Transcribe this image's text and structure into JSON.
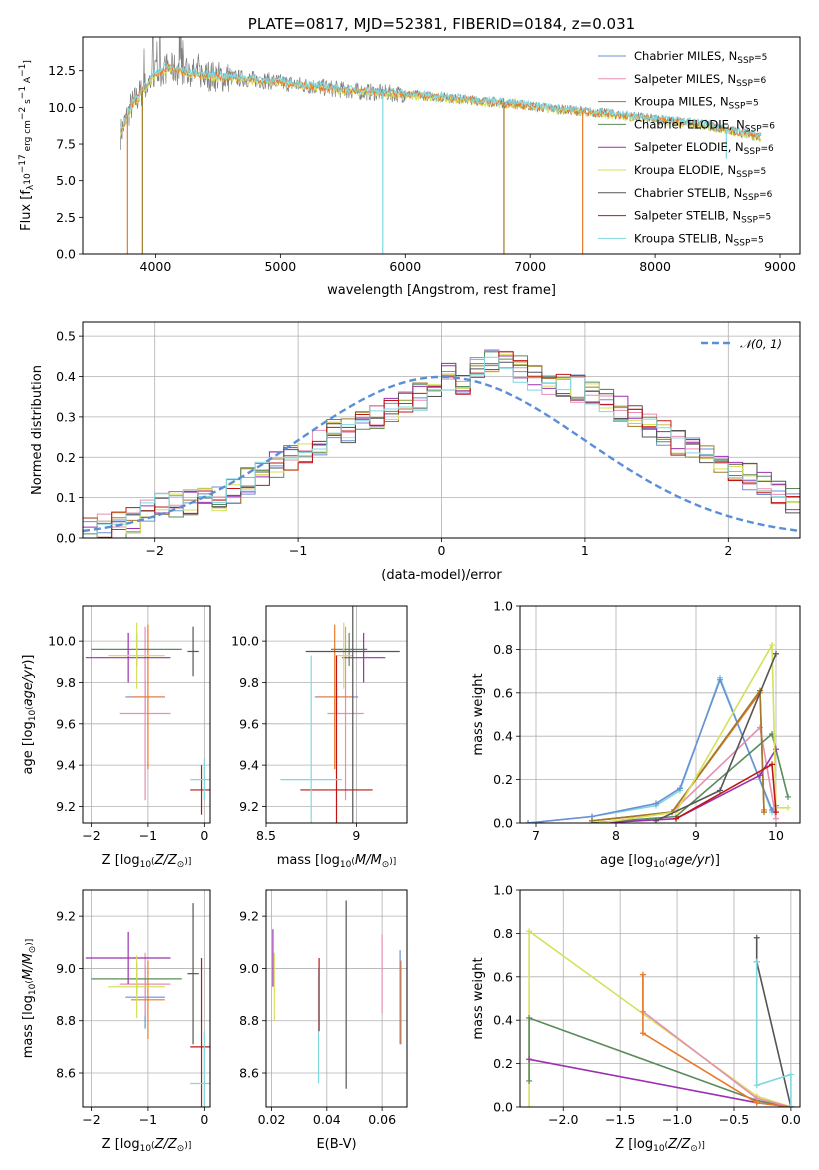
{
  "colors": {
    "Chabrier MILES": "#6a8fd6",
    "Salpeter MILES": "#e58fb4",
    "Kroupa MILES": "#a07a28",
    "Chabrier ELODIE": "#5b8a5b",
    "Salpeter ELODIE": "#9b30b0",
    "Kroupa ELODIE": "#d6e05a",
    "Chabrier STELIB": "#555555",
    "Salpeter STELIB": "#c01515",
    "Kroupa STELIB": "#7fd8e0",
    "data": "#808080",
    "orange": "#e87a2a",
    "normal": "#5b8ed8"
  },
  "chart_data": [
    {
      "id": "spectrum",
      "type": "line",
      "title": "PLATE=0817, MJD=52381, FIBERID=0184, z=0.031",
      "xlabel": "wavelength [Angstrom, rest frame]",
      "ylabel": "Flux [fλ10⁻¹⁷ erg cm⁻² s⁻¹ A⁻¹]",
      "xlim": [
        3420,
        9160
      ],
      "ylim": [
        0,
        14.8
      ],
      "xticks": [
        4000,
        5000,
        6000,
        7000,
        8000,
        9000
      ],
      "yticks": [
        0.0,
        2.5,
        5.0,
        7.5,
        10.0,
        12.5
      ],
      "ytick_labels": [
        "0.0",
        "2.5",
        "5.0",
        "7.5",
        "10.0",
        "12.5"
      ],
      "continuum_x": [
        3720,
        3800,
        3900,
        4000,
        4100,
        4300,
        4500,
        4800,
        5200,
        5600,
        6000,
        6400,
        6800,
        7200,
        7600,
        8000,
        8400,
        8850
      ],
      "continuum_y": [
        8.2,
        10.0,
        11.2,
        12.3,
        12.7,
        12.3,
        12.1,
        11.9,
        11.5,
        11.1,
        10.9,
        10.6,
        10.3,
        9.9,
        9.6,
        9.2,
        8.8,
        8.0
      ],
      "dips": [
        {
          "x": 3775,
          "color": "orange",
          "y": 0
        },
        {
          "x": 3895,
          "color": "Kroupa MILES",
          "y": 0
        },
        {
          "x": 5820,
          "color": "Kroupa STELIB",
          "y": 0
        },
        {
          "x": 6790,
          "color": "Kroupa MILES",
          "y": 0
        },
        {
          "x": 7420,
          "color": "orange",
          "y": 0
        },
        {
          "x": 8570,
          "color": "Kroupa STELIB",
          "y": 6.5
        }
      ],
      "legend": {
        "placement": "top-right",
        "entries": [
          {
            "name": "Chabrier MILES",
            "sub": "SSP",
            "n": "=5"
          },
          {
            "name": "Salpeter MILES",
            "sub": "SSP",
            "n": "=6"
          },
          {
            "name": "Kroupa MILES",
            "sub": "SSP",
            "n": "=5"
          },
          {
            "name": "Chabrier ELODIE",
            "sub": "SSP",
            "n": "=6"
          },
          {
            "name": "Salpeter ELODIE",
            "sub": "SSP",
            "n": "=6"
          },
          {
            "name": "Kroupa ELODIE",
            "sub": "SSP",
            "n": "=5"
          },
          {
            "name": "Chabrier STELIB",
            "sub": "SSP",
            "n": "=6"
          },
          {
            "name": "Salpeter STELIB",
            "sub": "SSP",
            "n": "=5"
          },
          {
            "name": "Kroupa STELIB",
            "sub": "SSP",
            "n": "=5"
          }
        ]
      }
    },
    {
      "id": "residuals",
      "type": "bar",
      "xlabel": "(data-model)/error",
      "ylabel": "Normed distribution",
      "xlim": [
        -2.5,
        2.5
      ],
      "ylim": [
        0,
        0.535
      ],
      "xticks": [
        -2,
        -1,
        0,
        1,
        2
      ],
      "yticks": [
        0.0,
        0.1,
        0.2,
        0.3,
        0.4,
        0.5
      ],
      "ytick_labels": [
        "0.0",
        "0.1",
        "0.2",
        "0.3",
        "0.4",
        "0.5"
      ],
      "bin_width": 0.1,
      "hist_base": [
        0.02,
        0.025,
        0.03,
        0.045,
        0.06,
        0.08,
        0.08,
        0.085,
        0.09,
        0.1,
        0.12,
        0.14,
        0.16,
        0.18,
        0.2,
        0.22,
        0.24,
        0.26,
        0.27,
        0.28,
        0.3,
        0.32,
        0.33,
        0.35,
        0.37,
        0.4,
        0.39,
        0.42,
        0.44,
        0.43,
        0.42,
        0.4,
        0.39,
        0.38,
        0.37,
        0.36,
        0.34,
        0.32,
        0.3,
        0.28,
        0.26,
        0.24,
        0.22,
        0.2,
        0.18,
        0.16,
        0.15,
        0.13,
        0.11,
        0.09,
        0.08,
        0.07,
        0.065,
        0.06,
        0.05,
        0.04,
        0.035,
        0.03,
        0.028,
        0.025
      ],
      "normal_label": "𝒩(0, 1)",
      "legend": {
        "placement": "top-right"
      }
    },
    {
      "id": "age-vs-Z",
      "type": "scatter",
      "xlabel": "Z [log10(Z/Z⊙)]",
      "ylabel": "age  [log10(age/yr)]",
      "xlim": [
        -2.15,
        0.1
      ],
      "ylim": [
        9.12,
        10.17
      ],
      "xticks": [
        -2,
        -1,
        0
      ],
      "yticks": [
        9.2,
        9.4,
        9.6,
        9.8,
        10.0
      ],
      "ytick_labels": [
        "9.2",
        "9.4",
        "9.6",
        "9.8",
        "10.0"
      ],
      "points": [
        {
          "c": "Chabrier MILES",
          "x": -1.05,
          "y": 9.73,
          "xe": 0.35,
          "ye": 0.08
        },
        {
          "c": "Salpeter MILES",
          "x": -1.05,
          "y": 9.65,
          "xe": 0.45,
          "ye": 0.42
        },
        {
          "c": "orange",
          "x": -1.0,
          "y": 9.73,
          "xe": 0.3,
          "ye": 0.35
        },
        {
          "c": "Chabrier ELODIE",
          "x": -1.2,
          "y": 9.96,
          "xe": 0.8,
          "ye": 0.08
        },
        {
          "c": "Salpeter ELODIE",
          "x": -1.35,
          "y": 9.92,
          "xe": 0.75,
          "ye": 0.12
        },
        {
          "c": "Kroupa ELODIE",
          "x": -1.2,
          "y": 9.93,
          "xe": 0.5,
          "ye": 0.16
        },
        {
          "c": "Chabrier STELIB",
          "x": -0.2,
          "y": 9.95,
          "xe": 0.1,
          "ye": 0.12
        },
        {
          "c": "Salpeter STELIB",
          "x": -0.05,
          "y": 9.28,
          "xe": 0.2,
          "ye": 0.12
        },
        {
          "c": "Kroupa STELIB",
          "x": 0.0,
          "y": 9.33,
          "xe": 0.25,
          "ye": 0.1
        }
      ]
    },
    {
      "id": "age-vs-mass",
      "type": "scatter",
      "xlabel": "mass [log10(M/M⊙)]",
      "xlim": [
        8.5,
        9.28
      ],
      "ylim": [
        9.12,
        10.17
      ],
      "xticks": [
        8.5,
        9.0
      ],
      "yticks": [
        9.2,
        9.4,
        9.6,
        9.8,
        10.0
      ],
      "ytick_labels": [
        "9.2",
        "9.4",
        "9.6",
        "9.8",
        "10.0"
      ],
      "points": [
        {
          "c": "Chabrier MILES",
          "x": 8.89,
          "y": 9.73,
          "xe": 0.12,
          "ye": 0.08
        },
        {
          "c": "Salpeter MILES",
          "x": 8.94,
          "y": 9.65,
          "xe": 0.1,
          "ye": 0.42
        },
        {
          "c": "orange",
          "x": 8.88,
          "y": 9.73,
          "xe": 0.1,
          "ye": 0.35
        },
        {
          "c": "Chabrier ELODIE",
          "x": 8.96,
          "y": 9.96,
          "xe": 0.1,
          "ye": 0.08
        },
        {
          "c": "Salpeter ELODIE",
          "x": 9.04,
          "y": 9.92,
          "xe": 0.12,
          "ye": 0.12
        },
        {
          "c": "Kroupa ELODIE",
          "x": 8.93,
          "y": 9.93,
          "xe": 0.05,
          "ye": 0.16
        },
        {
          "c": "Chabrier STELIB",
          "x": 8.98,
          "y": 9.95,
          "xe": 0.26,
          "ye": 0.85
        },
        {
          "c": "Salpeter STELIB",
          "x": 8.89,
          "y": 9.28,
          "xe": 0.2,
          "ye": 0.65
        },
        {
          "c": "Kroupa STELIB",
          "x": 8.75,
          "y": 9.33,
          "xe": 0.17,
          "ye": 0.6
        }
      ]
    },
    {
      "id": "mass-weight-vs-age",
      "type": "line",
      "xlabel": "age  [log10(age/yr)]",
      "ylabel": "mass weight",
      "xlim": [
        6.8,
        10.3
      ],
      "ylim": [
        0,
        1.0
      ],
      "xticks": [
        7,
        8,
        9,
        10
      ],
      "yticks": [
        0.0,
        0.2,
        0.4,
        0.6,
        0.8,
        1.0
      ],
      "ytick_labels": [
        "0.0",
        "0.2",
        "0.4",
        "0.6",
        "0.8",
        "1.0"
      ],
      "series": [
        {
          "c": "Kroupa STELIB",
          "x": [
            6.9,
            7.7,
            8.5,
            8.8,
            9.3,
            9.95,
            10.0
          ],
          "y": [
            0.0,
            0.03,
            0.08,
            0.15,
            0.67,
            0.05,
            0.07
          ]
        },
        {
          "c": "Chabrier MILES",
          "x": [
            6.9,
            7.7,
            8.5,
            8.8,
            9.3,
            9.95,
            10.0
          ],
          "y": [
            0.0,
            0.03,
            0.09,
            0.16,
            0.66,
            0.06,
            0.08
          ]
        },
        {
          "c": "Salpeter MILES",
          "x": [
            7.7,
            8.7,
            9.8,
            10.0
          ],
          "y": [
            0.01,
            0.05,
            0.44,
            0.02
          ]
        },
        {
          "c": "orange",
          "x": [
            7.7,
            8.7,
            9.8,
            9.85
          ],
          "y": [
            0.01,
            0.05,
            0.6,
            0.06
          ]
        },
        {
          "c": "Kroupa MILES",
          "x": [
            7.7,
            8.7,
            9.8,
            9.85
          ],
          "y": [
            0.01,
            0.05,
            0.61,
            0.05
          ]
        },
        {
          "c": "Chabrier ELODIE",
          "x": [
            7.7,
            8.75,
            9.95,
            10.15
          ],
          "y": [
            0.0,
            0.03,
            0.41,
            0.12
          ]
        },
        {
          "c": "Salpeter ELODIE",
          "x": [
            7.8,
            8.75,
            9.8,
            10.0
          ],
          "y": [
            0.0,
            0.02,
            0.22,
            0.34
          ]
        },
        {
          "c": "Kroupa ELODIE",
          "x": [
            7.8,
            8.75,
            9.95,
            10.0,
            10.15
          ],
          "y": [
            0.0,
            0.05,
            0.82,
            0.07,
            0.07
          ]
        },
        {
          "c": "Chabrier STELIB",
          "x": [
            8.5,
            9.3,
            10.0
          ],
          "y": [
            0.01,
            0.15,
            0.78
          ]
        },
        {
          "c": "Salpeter STELIB",
          "x": [
            8.75,
            9.95,
            10.0
          ],
          "y": [
            0.02,
            0.27,
            0.05
          ]
        }
      ]
    },
    {
      "id": "mass-vs-Z",
      "type": "scatter",
      "xlabel": "Z [log10(Z/Z⊙)]",
      "ylabel": "mass [log10(M/M⊙)]",
      "xlim": [
        -2.15,
        0.1
      ],
      "ylim": [
        8.47,
        9.3
      ],
      "xticks": [
        -2,
        -1,
        0
      ],
      "yticks": [
        8.6,
        8.8,
        9.0,
        9.2
      ],
      "ytick_labels": [
        "8.6",
        "8.8",
        "9.0",
        "9.2"
      ],
      "points": [
        {
          "c": "Chabrier MILES",
          "x": -1.05,
          "y": 8.89,
          "xe": 0.35,
          "ye": 0.12
        },
        {
          "c": "Salpeter MILES",
          "x": -1.05,
          "y": 8.94,
          "xe": 0.45,
          "ye": 0.12
        },
        {
          "c": "orange",
          "x": -1.0,
          "y": 8.88,
          "xe": 0.3,
          "ye": 0.15
        },
        {
          "c": "Chabrier ELODIE",
          "x": -1.2,
          "y": 8.96,
          "xe": 0.8,
          "ye": 0.06
        },
        {
          "c": "Salpeter ELODIE",
          "x": -1.35,
          "y": 9.04,
          "xe": 0.75,
          "ye": 0.1
        },
        {
          "c": "Kroupa ELODIE",
          "x": -1.2,
          "y": 8.93,
          "xe": 0.5,
          "ye": 0.12
        },
        {
          "c": "Chabrier STELIB",
          "x": -0.2,
          "y": 8.98,
          "xe": 0.1,
          "ye": 0.27
        },
        {
          "c": "Salpeter STELIB",
          "x": -0.05,
          "y": 8.7,
          "xe": 0.2,
          "ye": 0.34
        },
        {
          "c": "Kroupa STELIB",
          "x": 0.0,
          "y": 8.56,
          "xe": 0.25,
          "ye": 0.2
        }
      ]
    },
    {
      "id": "mass-vs-ebv",
      "type": "scatter",
      "xlabel": "E(B-V)",
      "xlim": [
        0.018,
        0.069
      ],
      "ylim": [
        8.47,
        9.3
      ],
      "xticks": [
        0.02,
        0.04,
        0.06
      ],
      "xtick_labels": [
        "0.02",
        "0.04",
        "0.06"
      ],
      "yticks": [
        8.6,
        8.8,
        9.0,
        9.2
      ],
      "ytick_labels": [
        "8.6",
        "8.8",
        "9.0",
        "9.2"
      ],
      "points": [
        {
          "c": "Salpeter ELODIE",
          "x": 0.0205,
          "y": 9.04,
          "ye": 0.11
        },
        {
          "c": "Kroupa ELODIE",
          "x": 0.021,
          "y": 8.93,
          "ye": 0.13
        },
        {
          "c": "Kroupa STELIB",
          "x": 0.037,
          "y": 8.78,
          "ye": 0.22
        },
        {
          "c": "Salpeter STELIB",
          "x": 0.0372,
          "y": 8.9,
          "ye": 0.14
        },
        {
          "c": "Chabrier STELIB",
          "x": 0.047,
          "y": 8.9,
          "ye": 0.36
        },
        {
          "c": "Salpeter MILES",
          "x": 0.06,
          "y": 8.98,
          "ye": 0.15
        },
        {
          "c": "Chabrier MILES",
          "x": 0.0665,
          "y": 8.89,
          "ye": 0.18
        },
        {
          "c": "orange",
          "x": 0.0668,
          "y": 8.87,
          "ye": 0.16
        }
      ]
    },
    {
      "id": "mass-weight-vs-Z",
      "type": "line",
      "xlabel": "Z [log10(Z/Z⊙)]",
      "ylabel": "mass weight",
      "xlim": [
        -2.38,
        0.08
      ],
      "ylim": [
        0,
        1.0
      ],
      "xticks": [
        -2.0,
        -1.5,
        -1.0,
        -0.5,
        0.0
      ],
      "xtick_labels": [
        "−2.0",
        "−1.5",
        "−1.0",
        "−0.5",
        "0.0"
      ],
      "yticks": [
        0.0,
        0.2,
        0.4,
        0.6,
        0.8,
        1.0
      ],
      "ytick_labels": [
        "0.0",
        "0.2",
        "0.4",
        "0.6",
        "0.8",
        "1.0"
      ],
      "series": [
        {
          "c": "Kroupa ELODIE",
          "x": [
            -2.3,
            -2.3,
            -0.3,
            0.0
          ],
          "y": [
            0.0,
            0.81,
            0.05,
            0.0
          ]
        },
        {
          "c": "Chabrier ELODIE",
          "x": [
            -2.3,
            -2.3,
            -0.3,
            0.0
          ],
          "y": [
            0.12,
            0.41,
            0.03,
            0.0
          ]
        },
        {
          "c": "Salpeter ELODIE",
          "x": [
            -2.3,
            -0.3,
            0.0
          ],
          "y": [
            0.22,
            0.02,
            0.0
          ]
        },
        {
          "c": "Salpeter MILES",
          "x": [
            -1.3,
            -1.3,
            -0.3,
            0.0
          ],
          "y": [
            0.61,
            0.44,
            0.04,
            0.0
          ]
        },
        {
          "c": "orange",
          "x": [
            -1.3,
            -1.3,
            -0.3,
            0.0
          ],
          "y": [
            0.61,
            0.34,
            0.02,
            0.0
          ]
        },
        {
          "c": "Chabrier STELIB",
          "x": [
            -0.3,
            -0.3,
            0.0
          ],
          "y": [
            0.78,
            0.67,
            0.0
          ]
        },
        {
          "c": "Kroupa STELIB",
          "x": [
            -0.3,
            -0.3,
            0.0,
            0.0
          ],
          "y": [
            0.67,
            0.1,
            0.15,
            0.0
          ]
        }
      ]
    }
  ]
}
